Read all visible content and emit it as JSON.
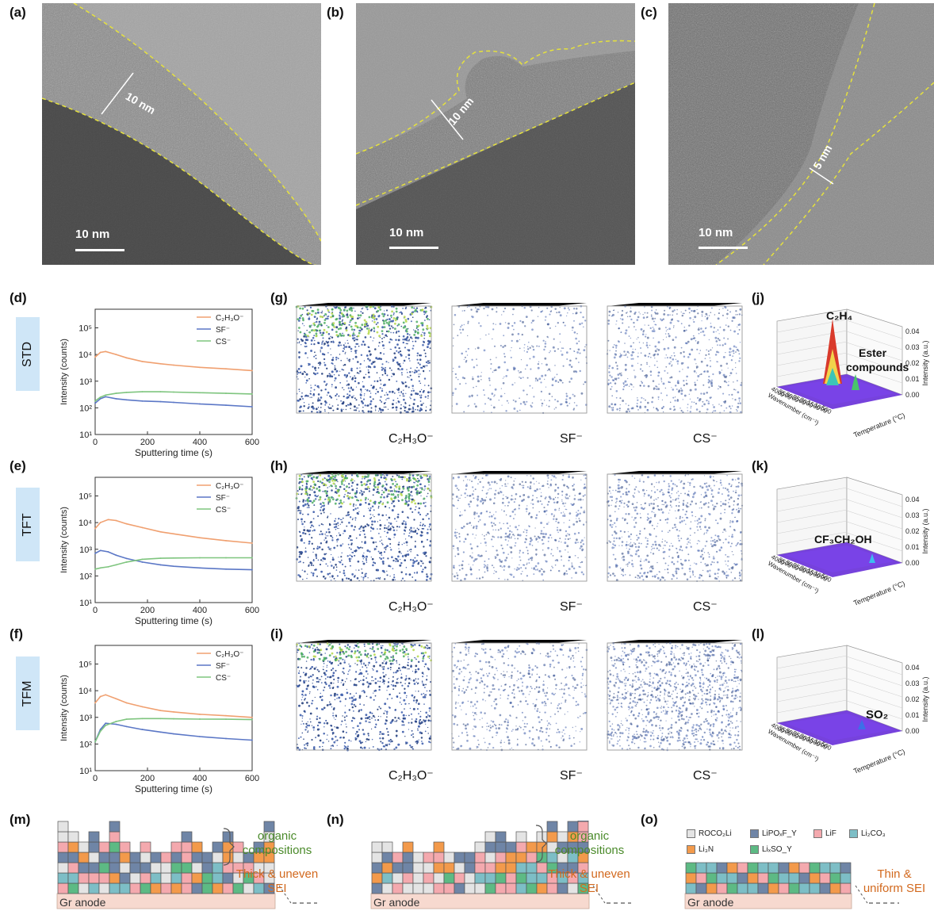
{
  "labels": {
    "a": "(a)",
    "b": "(b)",
    "c": "(c)",
    "d": "(d)",
    "e": "(e)",
    "f": "(f)",
    "g": "(g)",
    "h": "(h)",
    "i": "(i)",
    "j": "(j)",
    "k": "(k)",
    "l": "(l)",
    "m": "(m)",
    "n": "(n)",
    "o": "(o)"
  },
  "tem": [
    {
      "thickness": "10 nm",
      "scale": "10 nm"
    },
    {
      "thickness": "10 nm",
      "scale": "10 nm"
    },
    {
      "thickness": "5 nm",
      "scale": "10 nm"
    }
  ],
  "samples": [
    "STD",
    "TFT",
    "TFM"
  ],
  "cube_captions": [
    "C₂H₃O⁻",
    "SF⁻",
    "CS⁻"
  ],
  "ftir_annotations": {
    "j": [
      "C₂H₄",
      "Ester",
      "compounds"
    ],
    "k": [
      "CF₃CH₂OH"
    ],
    "l": [
      "SO₂"
    ]
  },
  "ftir_axes": {
    "xlabel": "Wavenumber (cm⁻¹)",
    "ylabel": "Temperature (°C)",
    "zlabel": "Intensity (a.u.)",
    "zticks": [
      "0.00",
      "0.01",
      "0.02",
      "0.03",
      "0.04"
    ],
    "wticks": [
      "4000",
      "3500",
      "3000",
      "2500",
      "2000",
      "1500",
      "1000",
      "500"
    ]
  },
  "sei": {
    "organic_line1": "organic",
    "organic_line2": "compositions",
    "thick_line1": "Thick & uneven",
    "thick_line2": "SEI",
    "thin_line1": "Thin &",
    "thin_line2": "uniform SEI",
    "anode": "Gr anode",
    "legend": [
      {
        "name": "ROCO₂Li",
        "color": "#e4e4e4"
      },
      {
        "name": "LiPOₓF_Y",
        "color": "#6f85a6"
      },
      {
        "name": "LiF",
        "color": "#f4a9ae"
      },
      {
        "name": "Li₂CO₃",
        "color": "#7dbec6"
      },
      {
        "name": "Li₃N",
        "color": "#f39a4b"
      },
      {
        "name": "LiₓSO_Y",
        "color": "#5dba84"
      }
    ]
  },
  "chart_data": [
    {
      "type": "line",
      "panel": "d",
      "sample": "STD",
      "xlabel": "Sputtering time (s)",
      "ylabel": "Intensity (counts)",
      "xlim": [
        0,
        600
      ],
      "ylim": [
        10,
        500000
      ],
      "yscale": "log",
      "xticks": [
        0,
        200,
        400,
        600
      ],
      "yticks": [
        "10¹",
        "10²",
        "10³",
        "10⁴",
        "10⁵"
      ],
      "series": [
        {
          "name": "C₂H₃O⁻",
          "color": "#f0a070",
          "x": [
            0,
            20,
            40,
            80,
            120,
            180,
            250,
            300,
            400,
            500,
            600
          ],
          "y": [
            8000,
            12000,
            13000,
            10000,
            7500,
            5500,
            4500,
            4000,
            3300,
            2900,
            2500
          ]
        },
        {
          "name": "SF⁻",
          "color": "#5b77c6",
          "x": [
            0,
            20,
            40,
            80,
            120,
            180,
            250,
            300,
            400,
            500,
            600
          ],
          "y": [
            150,
            220,
            260,
            220,
            200,
            180,
            170,
            160,
            140,
            125,
            110
          ]
        },
        {
          "name": "CS⁻",
          "color": "#7fc57f",
          "x": [
            0,
            20,
            40,
            80,
            120,
            180,
            250,
            300,
            400,
            500,
            600
          ],
          "y": [
            180,
            250,
            300,
            350,
            380,
            400,
            400,
            390,
            370,
            350,
            330
          ]
        }
      ]
    },
    {
      "type": "line",
      "panel": "e",
      "sample": "TFT",
      "xlabel": "Sputtering time (s)",
      "ylabel": "Intensity (counts)",
      "xlim": [
        0,
        600
      ],
      "ylim": [
        10,
        500000
      ],
      "yscale": "log",
      "xticks": [
        0,
        200,
        400,
        600
      ],
      "yticks": [
        "10¹",
        "10²",
        "10³",
        "10⁴",
        "10⁵"
      ],
      "series": [
        {
          "name": "C₂H₃O⁻",
          "color": "#f0a070",
          "x": [
            0,
            20,
            50,
            80,
            120,
            180,
            250,
            300,
            400,
            500,
            600
          ],
          "y": [
            6000,
            10000,
            13000,
            12000,
            9000,
            6500,
            4500,
            3800,
            2700,
            2100,
            1700
          ]
        },
        {
          "name": "SF⁻",
          "color": "#5b77c6",
          "x": [
            0,
            20,
            50,
            80,
            120,
            180,
            250,
            300,
            400,
            500,
            600
          ],
          "y": [
            700,
            900,
            800,
            600,
            450,
            330,
            260,
            230,
            200,
            180,
            170
          ]
        },
        {
          "name": "CS⁻",
          "color": "#7fc57f",
          "x": [
            0,
            20,
            50,
            80,
            120,
            180,
            250,
            300,
            400,
            500,
            600
          ],
          "y": [
            180,
            200,
            220,
            260,
            330,
            420,
            460,
            470,
            480,
            480,
            480
          ]
        }
      ]
    },
    {
      "type": "line",
      "panel": "f",
      "sample": "TFM",
      "xlabel": "Sputtering time (s)",
      "ylabel": "Intensity (counts)",
      "xlim": [
        0,
        600
      ],
      "ylim": [
        10,
        500000
      ],
      "yscale": "log",
      "xticks": [
        0,
        200,
        400,
        600
      ],
      "yticks": [
        "10¹",
        "10²",
        "10³",
        "10⁴",
        "10⁵"
      ],
      "series": [
        {
          "name": "C₂H₃O⁻",
          "color": "#f0a070",
          "x": [
            0,
            20,
            40,
            80,
            120,
            180,
            250,
            300,
            400,
            500,
            600
          ],
          "y": [
            3500,
            6000,
            7000,
            5000,
            3500,
            2500,
            1800,
            1600,
            1300,
            1150,
            1000
          ]
        },
        {
          "name": "SF⁻",
          "color": "#5b77c6",
          "x": [
            0,
            20,
            40,
            80,
            120,
            180,
            250,
            300,
            400,
            500,
            600
          ],
          "y": [
            120,
            350,
            600,
            550,
            450,
            350,
            280,
            240,
            190,
            160,
            140
          ]
        },
        {
          "name": "CS⁻",
          "color": "#7fc57f",
          "x": [
            0,
            20,
            40,
            80,
            120,
            180,
            250,
            300,
            400,
            500,
            600
          ],
          "y": [
            120,
            300,
            500,
            700,
            850,
            900,
            900,
            880,
            860,
            850,
            820
          ]
        }
      ]
    }
  ]
}
